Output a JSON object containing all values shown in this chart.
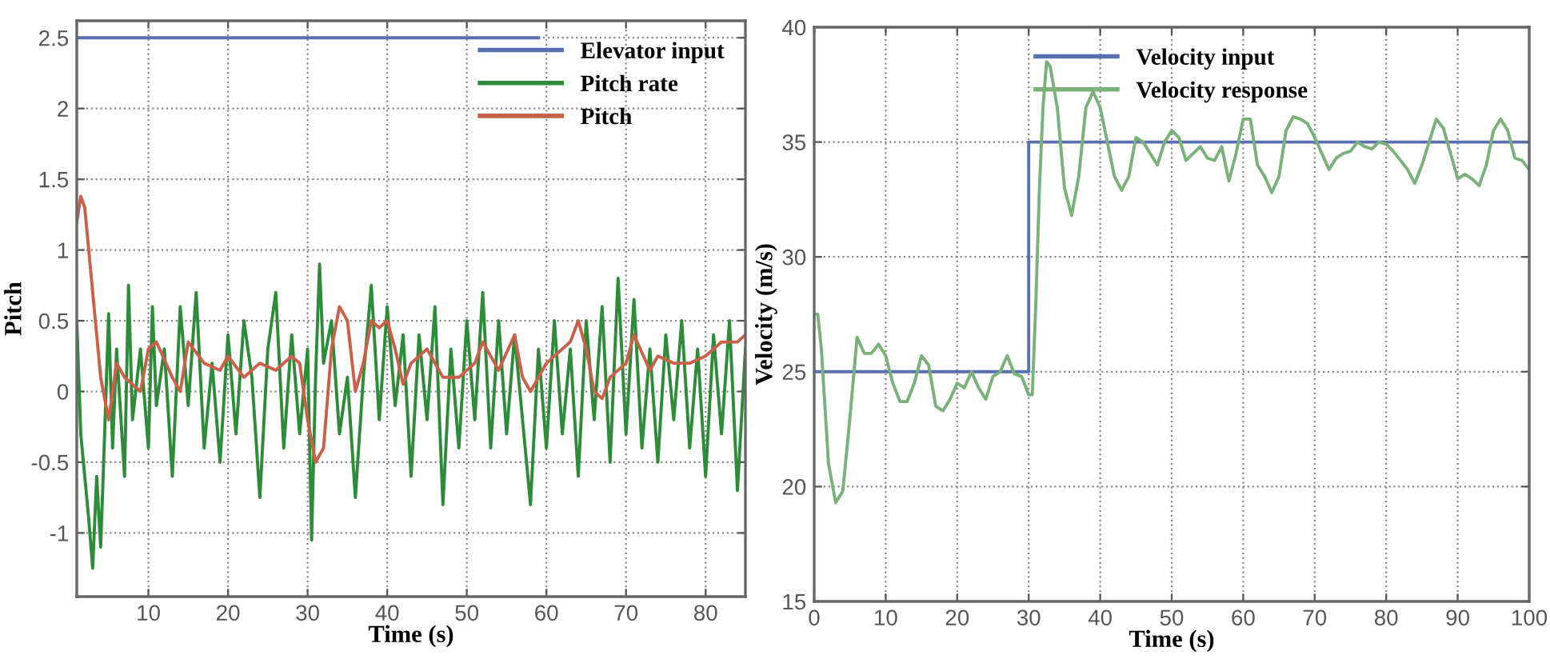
{
  "chart_data": [
    {
      "type": "line",
      "xlabel": "Time (s)",
      "ylabel": "Pitch",
      "xlim": [
        1,
        85
      ],
      "ylim": [
        -1.45,
        2.62
      ],
      "xticks": [
        10,
        20,
        30,
        40,
        50,
        60,
        70,
        80
      ],
      "yticks": [
        -1,
        -0.5,
        0,
        0.5,
        1,
        1.5,
        2,
        2.5
      ],
      "grid": true,
      "legend": "top right",
      "series": [
        {
          "name": "Elevator input",
          "color": "#5a6fb0",
          "x": [
            1,
            59
          ],
          "values": [
            2.5,
            2.5
          ]
        },
        {
          "name": "Pitch rate",
          "color": "#2e8b3a",
          "x": [
            1,
            1.5,
            2.5,
            3,
            3.5,
            4,
            4.5,
            5,
            5.5,
            6,
            7,
            7.5,
            8,
            9,
            10,
            10.5,
            11,
            12,
            13,
            14,
            15,
            16,
            17,
            18,
            19,
            20,
            21,
            22,
            23,
            24,
            25,
            26,
            27,
            28,
            29,
            30,
            30.5,
            31,
            31.5,
            32,
            33,
            34,
            35,
            36,
            37,
            38,
            39,
            40,
            41,
            42,
            43,
            44,
            45,
            46,
            47,
            48,
            49,
            50,
            51,
            52,
            53,
            54,
            55,
            56,
            57,
            58,
            59,
            60,
            61,
            62,
            63,
            64,
            65,
            66,
            67,
            68,
            69,
            70,
            71,
            72,
            73,
            74,
            75,
            76,
            77,
            78,
            79,
            80,
            81,
            82,
            83,
            84,
            85
          ],
          "values": [
            0.5,
            -0.3,
            -0.9,
            -1.25,
            -0.6,
            -1.1,
            -0.3,
            0.55,
            -0.4,
            0.3,
            -0.6,
            0.75,
            -0.2,
            0.3,
            -0.4,
            0.6,
            -0.1,
            0.3,
            -0.6,
            0.6,
            -0.1,
            0.7,
            -0.4,
            0.2,
            -0.5,
            0.4,
            -0.3,
            0.5,
            0.1,
            -0.75,
            0.3,
            0.7,
            -0.4,
            0.4,
            -0.3,
            0.3,
            -1.05,
            0.1,
            0.9,
            0.2,
            0.5,
            -0.3,
            0.1,
            -0.75,
            0.1,
            0.75,
            -0.2,
            0.6,
            -0.1,
            0.4,
            -0.6,
            0.4,
            -0.2,
            0.6,
            -0.8,
            0.3,
            -0.4,
            0.5,
            -0.2,
            0.7,
            -0.4,
            0.5,
            -0.3,
            0.4,
            -0.2,
            -0.8,
            0.3,
            -0.4,
            0.5,
            -0.3,
            0.3,
            -0.6,
            0.5,
            -0.2,
            0.6,
            -0.5,
            0.8,
            -0.3,
            0.65,
            -0.4,
            0.3,
            -0.5,
            0.4,
            -0.2,
            0.5,
            -0.4,
            0.3,
            -0.6,
            0.4,
            -0.3,
            0.5,
            -0.7,
            0.3
          ]
        },
        {
          "name": "Pitch",
          "color": "#c8604a",
          "x": [
            1,
            1.5,
            2,
            3,
            4,
            5,
            6,
            7,
            9,
            10,
            11,
            13,
            14,
            15,
            17,
            19,
            20,
            22,
            24,
            26,
            28,
            29,
            30,
            31,
            32,
            33,
            34,
            35,
            36,
            37,
            38,
            39,
            40,
            41,
            42,
            43,
            45,
            47,
            49,
            51,
            52,
            54,
            56,
            57,
            58,
            60,
            62,
            63,
            64,
            65,
            66,
            67,
            68,
            70,
            71,
            73,
            74,
            76,
            78,
            80,
            82,
            84,
            85
          ],
          "values": [
            1.2,
            1.38,
            1.3,
            0.7,
            0.1,
            -0.2,
            0.2,
            0.1,
            0.0,
            0.3,
            0.35,
            0.1,
            0.0,
            0.35,
            0.2,
            0.15,
            0.25,
            0.1,
            0.2,
            0.15,
            0.25,
            0.2,
            -0.2,
            -0.5,
            -0.4,
            0.3,
            0.6,
            0.5,
            0.0,
            0.2,
            0.5,
            0.45,
            0.5,
            0.3,
            0.05,
            0.2,
            0.3,
            0.1,
            0.1,
            0.2,
            0.35,
            0.15,
            0.4,
            0.1,
            0.0,
            0.2,
            0.3,
            0.35,
            0.5,
            0.3,
            0.0,
            -0.05,
            0.1,
            0.2,
            0.4,
            0.15,
            0.25,
            0.2,
            0.2,
            0.25,
            0.35,
            0.35,
            0.4
          ]
        }
      ]
    },
    {
      "type": "line",
      "xlabel": "Time (s)",
      "ylabel": "Velocity (m/s)",
      "xlim": [
        0,
        100
      ],
      "ylim": [
        15,
        40
      ],
      "xticks": [
        0,
        10,
        20,
        30,
        40,
        50,
        60,
        70,
        80,
        90,
        100
      ],
      "yticks": [
        15,
        20,
        25,
        30,
        35,
        40
      ],
      "grid": true,
      "legend": "top",
      "series": [
        {
          "name": "Velocity input",
          "color": "#5a6fb0",
          "x": [
            0,
            30,
            30,
            100
          ],
          "values": [
            25,
            25,
            35,
            35
          ]
        },
        {
          "name": "Velocity response",
          "color": "#7ab07a",
          "x": [
            0,
            0.5,
            1,
            2,
            3,
            4,
            5,
            6,
            7,
            8,
            9,
            10,
            11,
            12,
            13,
            14,
            15,
            16,
            17,
            18,
            19,
            20,
            21,
            22,
            23,
            24,
            25,
            26,
            27,
            28,
            29,
            30,
            30.5,
            31,
            31.5,
            32,
            32.5,
            33,
            34,
            35,
            36,
            37,
            38,
            39,
            40,
            41,
            42,
            43,
            44,
            45,
            46,
            47,
            48,
            49,
            50,
            51,
            52,
            53,
            54,
            55,
            56,
            57,
            58,
            59,
            60,
            61,
            62,
            63,
            64,
            65,
            66,
            67,
            68,
            69,
            70,
            71,
            72,
            73,
            74,
            75,
            76,
            77,
            78,
            79,
            80,
            81,
            82,
            83,
            84,
            85,
            86,
            87,
            88,
            89,
            90,
            91,
            92,
            93,
            94,
            95,
            96,
            97,
            98,
            99,
            100
          ],
          "values": [
            27.5,
            27.5,
            26,
            21,
            19.3,
            19.8,
            23,
            26.5,
            25.8,
            25.8,
            26.2,
            25.7,
            24.5,
            23.7,
            23.7,
            24.5,
            25.7,
            25.3,
            23.5,
            23.3,
            23.8,
            24.5,
            24.3,
            25.0,
            24.3,
            23.8,
            24.8,
            25.0,
            25.7,
            24.9,
            24.8,
            24.0,
            24.0,
            28,
            33,
            36.5,
            38.5,
            38.3,
            36.5,
            33,
            31.8,
            33.5,
            36.5,
            37.2,
            36.5,
            35,
            33.5,
            32.9,
            33.5,
            35.2,
            35,
            34.5,
            34.0,
            35,
            35.5,
            35.2,
            34.2,
            34.5,
            34.8,
            34.3,
            34.2,
            34.8,
            33.3,
            34.5,
            36,
            36,
            34,
            33.5,
            32.8,
            33.5,
            35.5,
            36.1,
            36,
            35.8,
            35.2,
            34.5,
            33.8,
            34.3,
            34.5,
            34.6,
            35,
            34.8,
            34.7,
            35.0,
            34.9,
            34.6,
            34.2,
            33.8,
            33.2,
            34,
            35,
            36,
            35.6,
            34.5,
            33.4,
            33.6,
            33.4,
            33.1,
            34,
            35.5,
            36,
            35.5,
            34.3,
            34.2,
            33.8
          ]
        }
      ]
    }
  ]
}
